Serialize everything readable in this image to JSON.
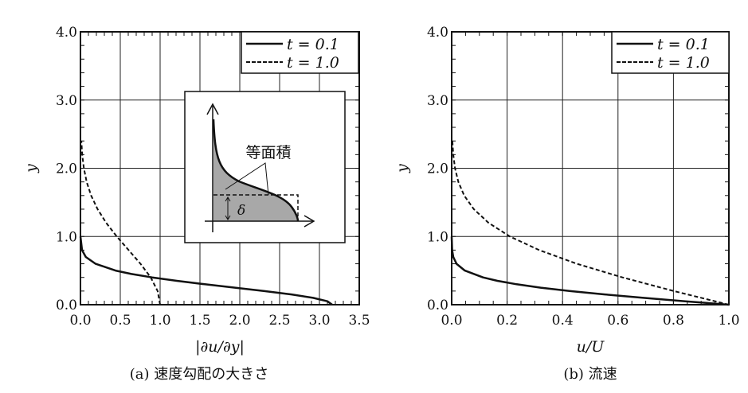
{
  "chart_data": [
    {
      "type": "line",
      "title": "",
      "caption": "(a) 速度勾配の大きさ",
      "xlabel": "|∂u/∂y|",
      "ylabel": "y",
      "xlim": [
        0,
        3.5
      ],
      "ylim": [
        0,
        4.0
      ],
      "xticks": [
        0,
        0.5,
        1.0,
        1.5,
        2.0,
        2.5,
        3.0,
        3.5
      ],
      "xtick_labels": [
        "0.0",
        "0.5",
        "1.0",
        "1.5",
        "2.0",
        "2.5",
        "3.0",
        "3.5"
      ],
      "yticks": [
        0,
        1,
        2,
        3,
        4
      ],
      "ytick_labels": [
        "0.0",
        "1.0",
        "2.0",
        "3.0",
        "4.0"
      ],
      "grid": true,
      "legend_position": "top-right",
      "series": [
        {
          "name": "t = 0.1",
          "style": "solid",
          "y": [
            0,
            0.05,
            0.1,
            0.15,
            0.2,
            0.25,
            0.3,
            0.35,
            0.4,
            0.45,
            0.5,
            0.6,
            0.7,
            0.8,
            1.0
          ],
          "x": [
            3.16,
            3.1,
            2.92,
            2.65,
            2.31,
            1.94,
            1.56,
            1.21,
            0.9,
            0.64,
            0.44,
            0.19,
            0.067,
            0.02,
            0
          ]
        },
        {
          "name": "t = 1.0",
          "style": "dashed",
          "y": [
            0,
            0.2,
            0.4,
            0.6,
            0.8,
            1.0,
            1.2,
            1.4,
            1.6,
            1.8,
            2.0,
            2.2,
            2.4
          ],
          "x": [
            1.0,
            0.969,
            0.882,
            0.754,
            0.605,
            0.456,
            0.323,
            0.215,
            0.134,
            0.078,
            0.043,
            0.022,
            0.011
          ]
        }
      ],
      "inset": {
        "label": "等面積",
        "symbol": "δ"
      }
    },
    {
      "type": "line",
      "title": "",
      "caption": "(b) 流速",
      "xlabel": "u/U",
      "ylabel": "y",
      "xlim": [
        0,
        1.0
      ],
      "ylim": [
        0,
        4.0
      ],
      "xticks": [
        0,
        0.2,
        0.4,
        0.6,
        0.8,
        1.0
      ],
      "xtick_labels": [
        "0.0",
        "0.2",
        "0.4",
        "0.6",
        "0.8",
        "1.0"
      ],
      "yticks": [
        0,
        1,
        2,
        3,
        4
      ],
      "ytick_labels": [
        "0.0",
        "1.0",
        "2.0",
        "3.0",
        "4.0"
      ],
      "grid": true,
      "legend_position": "top-right",
      "series": [
        {
          "name": "t = 0.1",
          "style": "solid",
          "y": [
            0,
            0.05,
            0.1,
            0.15,
            0.2,
            0.25,
            0.3,
            0.35,
            0.4,
            0.5,
            0.6,
            0.7,
            0.8,
            1.0
          ],
          "x": [
            1,
            0.843,
            0.692,
            0.553,
            0.428,
            0.321,
            0.234,
            0.165,
            0.113,
            0.0475,
            0.0175,
            0.0057,
            0.0016,
            0
          ]
        },
        {
          "name": "t = 1.0",
          "style": "dashed",
          "y": [
            0,
            0.2,
            0.4,
            0.6,
            0.8,
            1.0,
            1.2,
            1.4,
            1.6,
            1.8,
            2.0,
            2.2,
            2.4
          ],
          "x": [
            1,
            0.802,
            0.616,
            0.452,
            0.316,
            0.21,
            0.133,
            0.08,
            0.045,
            0.024,
            0.012,
            0.0058,
            0.0026
          ]
        }
      ]
    }
  ]
}
